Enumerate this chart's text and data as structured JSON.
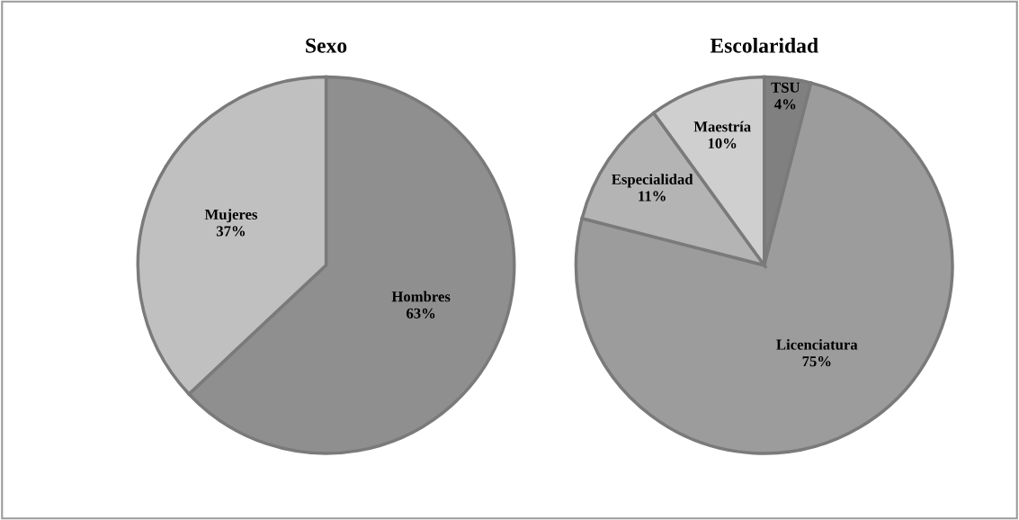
{
  "chart_data": [
    {
      "type": "pie",
      "title": "Sexo",
      "categories": [
        "Hombres",
        "Mujeres"
      ],
      "values": [
        63,
        37
      ],
      "colors": [
        "#8f8f8f",
        "#c0c0c0"
      ],
      "value_labels": [
        "63%",
        "37%"
      ]
    },
    {
      "type": "pie",
      "title": "Escolaridad",
      "categories": [
        "TSU",
        "Licenciatura",
        "Especialidad",
        "Maestría"
      ],
      "values": [
        4,
        75,
        11,
        10
      ],
      "colors": [
        "#808080",
        "#9c9c9c",
        "#b4b4b4",
        "#cfcfcf"
      ],
      "value_labels": [
        "4%",
        "75%",
        "11%",
        "10%"
      ]
    }
  ]
}
